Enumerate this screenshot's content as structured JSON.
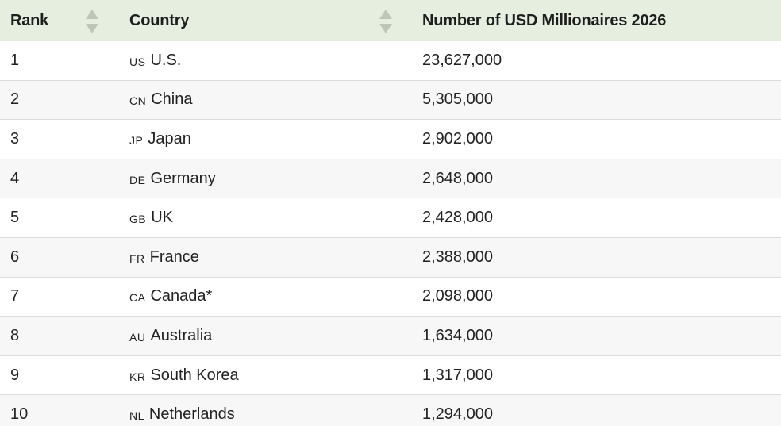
{
  "header": {
    "columns": [
      "Rank",
      "Country",
      "Number of USD Millionaires 2026"
    ]
  },
  "table": {
    "rows": [
      [
        "1",
        "US",
        "U.S.",
        "23,627,000"
      ],
      [
        "2",
        "CN",
        "China",
        "5,305,000"
      ],
      [
        "3",
        "JP",
        "Japan",
        "2,902,000"
      ],
      [
        "4",
        "DE",
        "Germany",
        "2,648,000"
      ],
      [
        "5",
        "GB",
        "UK",
        "2,428,000"
      ],
      [
        "6",
        "FR",
        "France",
        "2,388,000"
      ],
      [
        "7",
        "CA",
        "Canada*",
        "2,098,000"
      ],
      [
        "8",
        "AU",
        "Australia",
        "1,634,000"
      ],
      [
        "9",
        "KR",
        "South Korea",
        "1,317,000"
      ],
      [
        "10",
        "NL",
        "Netherlands",
        "1,294,000"
      ]
    ]
  }
}
